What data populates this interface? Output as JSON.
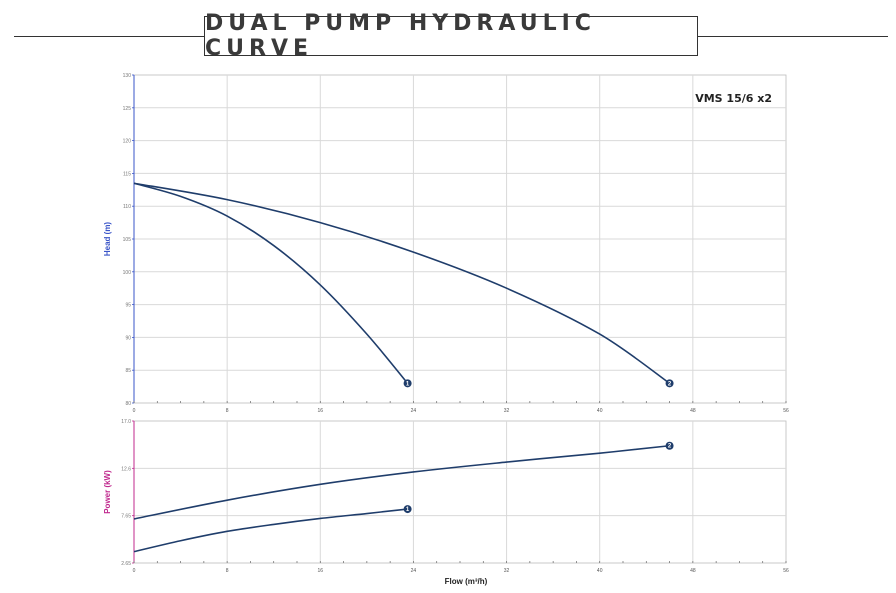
{
  "header": {
    "title": "DUAL PUMP HYDRAULIC CURVE"
  },
  "colors": {
    "curve": "#1f3d6b",
    "head_axis": "#3a55c8",
    "power_axis": "#c02a8e",
    "grid": "#d9d9d9"
  },
  "chart_data": [
    {
      "type": "line",
      "title": "",
      "annotation": "VMS 15/6 x2",
      "xlabel": "",
      "ylabel": "Head (m)",
      "xlim": [
        0,
        56
      ],
      "ylim": [
        80,
        130
      ],
      "x_ticks": [
        "0",
        "8",
        "16",
        "24",
        "32",
        "40",
        "48",
        "56"
      ],
      "y_ticks": [
        "80",
        "85",
        "90",
        "95",
        "100",
        "105",
        "110",
        "115",
        "120",
        "125",
        "130"
      ],
      "y_tick_labels": [
        "80",
        "85",
        "90",
        "95",
        "100",
        "105",
        "110",
        "115",
        "120",
        "125",
        "130"
      ],
      "grid": true,
      "series": [
        {
          "name": "1",
          "x": [
            0,
            4,
            8,
            12,
            16,
            20,
            23.5
          ],
          "y": [
            113.5,
            111.5,
            108.5,
            104.0,
            98.0,
            90.5,
            83.0
          ]
        },
        {
          "name": "2",
          "x": [
            0,
            8,
            16,
            24,
            32,
            40,
            46
          ],
          "y": [
            113.5,
            111.0,
            107.5,
            103.0,
            97.5,
            90.5,
            83.0
          ]
        }
      ]
    },
    {
      "type": "line",
      "title": "",
      "xlabel": "Flow (m³/h)",
      "ylabel": "Power (kW)",
      "xlim": [
        0,
        56
      ],
      "ylim": [
        2.65,
        17.0
      ],
      "x_ticks": [
        "0",
        "8",
        "16",
        "24",
        "32",
        "40",
        "48",
        "56"
      ],
      "y_tick_labels": [
        "2.65",
        "7.65",
        "12.6",
        "17.0"
      ],
      "grid": true,
      "series": [
        {
          "name": "1",
          "x": [
            0,
            4,
            8,
            12,
            16,
            20,
            23.5
          ],
          "y": [
            3.8,
            4.9,
            5.85,
            6.55,
            7.15,
            7.65,
            8.1
          ]
        },
        {
          "name": "2",
          "x": [
            0,
            8,
            16,
            24,
            32,
            40,
            46
          ],
          "y": [
            7.1,
            9.0,
            10.6,
            11.85,
            12.85,
            13.75,
            14.5
          ]
        }
      ]
    }
  ]
}
